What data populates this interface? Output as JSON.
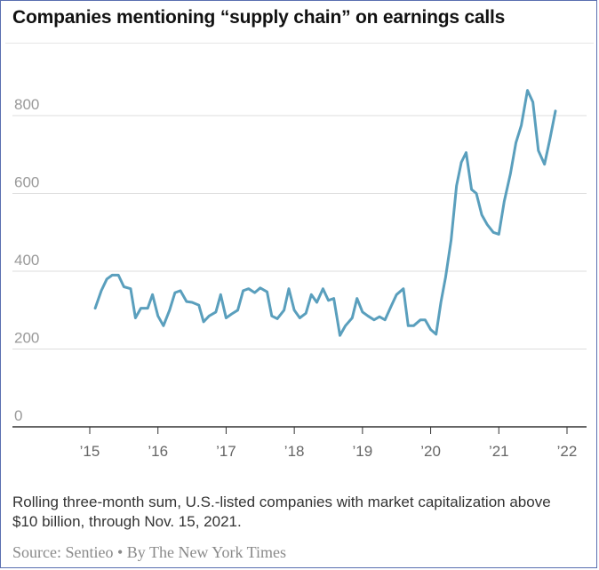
{
  "title": "Companies mentioning “supply chain” on earnings calls",
  "note": "Rolling three-month sum, U.S.-listed companies with market capitalization above $10 billion, through Nov. 15, 2021.",
  "source": "Source: Sentieo • By The New York Times",
  "colors": {
    "line": "#5a9fbd",
    "grid": "#dddddd",
    "axis": "#333333"
  },
  "chart_data": {
    "type": "line",
    "title": "Companies mentioning “supply chain” on earnings calls",
    "xlabel": "",
    "ylabel": "",
    "ylim": [
      0,
      900
    ],
    "xlim": [
      2015,
      2022
    ],
    "y_ticks": [
      0,
      200,
      400,
      600,
      800
    ],
    "y_tick_labels": [
      "0",
      "200",
      "400",
      "600",
      "800"
    ],
    "x_ticks": [
      2015,
      2016,
      2017,
      2018,
      2019,
      2020,
      2021,
      2022
    ],
    "x_tick_labels": [
      "’15",
      "’16",
      "’17",
      "’18",
      "’19",
      "’20",
      "’21",
      "’22"
    ],
    "grid": true,
    "series": [
      {
        "x": [
          2015.08,
          2015.17,
          2015.25,
          2015.33,
          2015.42,
          2015.5,
          2015.6,
          2015.67,
          2015.75,
          2015.85,
          2015.92,
          2016.0,
          2016.08,
          2016.17,
          2016.25,
          2016.33,
          2016.42,
          2016.5,
          2016.6,
          2016.67,
          2016.75,
          2016.85,
          2016.92,
          2017.0,
          2017.08,
          2017.17,
          2017.25,
          2017.33,
          2017.42,
          2017.5,
          2017.6,
          2017.67,
          2017.75,
          2017.85,
          2017.92,
          2018.0,
          2018.08,
          2018.17,
          2018.25,
          2018.33,
          2018.42,
          2018.5,
          2018.58,
          2018.67,
          2018.75,
          2018.85,
          2018.92,
          2019.0,
          2019.08,
          2019.17,
          2019.25,
          2019.33,
          2019.42,
          2019.5,
          2019.6,
          2019.67,
          2019.75,
          2019.85,
          2019.92,
          2020.0,
          2020.08,
          2020.15,
          2020.22,
          2020.3,
          2020.38,
          2020.45,
          2020.52,
          2020.6,
          2020.67,
          2020.75,
          2020.83,
          2020.92,
          2021.0,
          2021.08,
          2021.17,
          2021.25,
          2021.33,
          2021.42,
          2021.5,
          2021.58,
          2021.67,
          2021.75,
          2021.83
        ],
        "y": [
          305,
          350,
          380,
          390,
          390,
          360,
          355,
          280,
          305,
          305,
          340,
          285,
          260,
          300,
          345,
          350,
          322,
          320,
          313,
          270,
          285,
          295,
          340,
          280,
          290,
          300,
          350,
          355,
          345,
          357,
          347,
          285,
          278,
          300,
          355,
          300,
          280,
          292,
          340,
          320,
          355,
          325,
          330,
          235,
          260,
          280,
          330,
          295,
          285,
          275,
          283,
          275,
          310,
          340,
          355,
          260,
          260,
          275,
          275,
          250,
          238,
          320,
          385,
          480,
          620,
          680,
          705,
          610,
          600,
          545,
          520,
          500,
          495,
          580,
          650,
          730,
          775,
          865,
          835,
          710,
          675,
          740,
          812
        ]
      }
    ]
  }
}
